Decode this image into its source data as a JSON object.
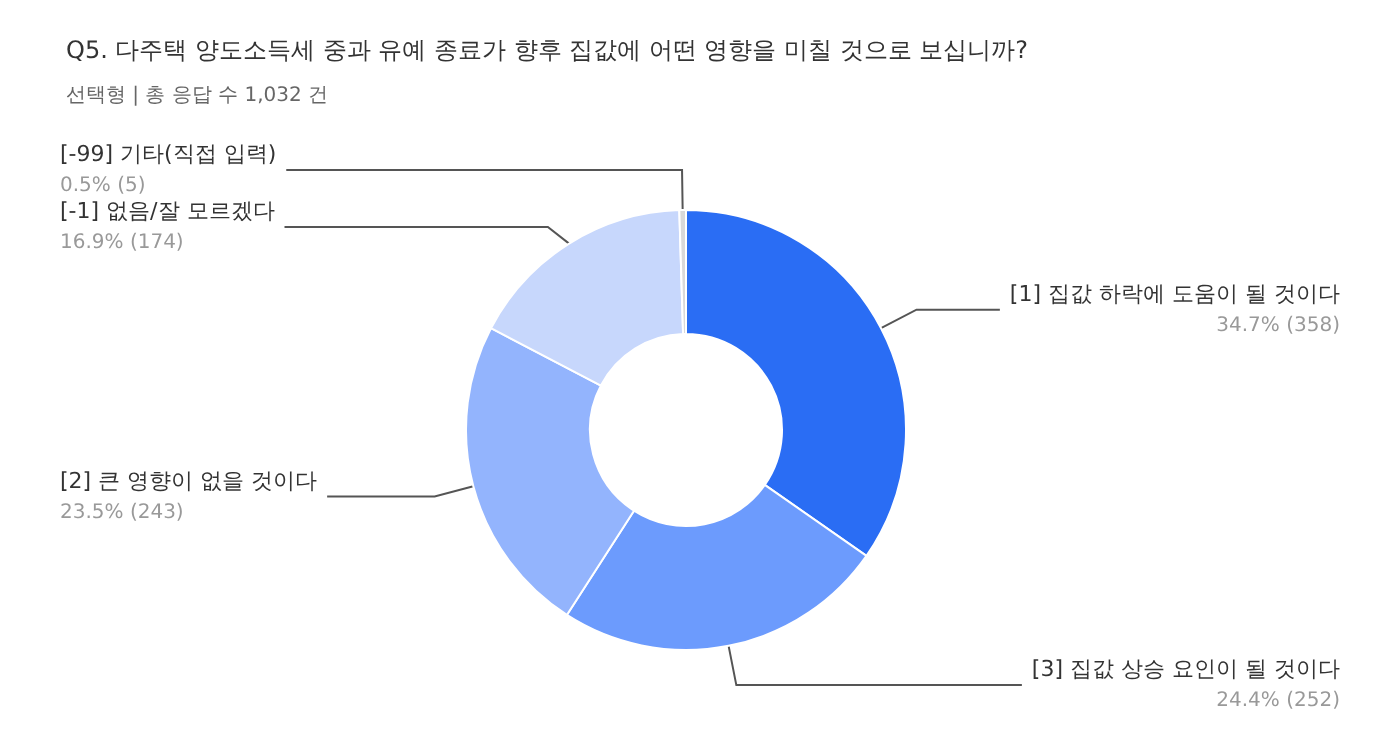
{
  "chart_data": {
    "type": "donut",
    "title": "Q5. 다주택 양도소득세 중과 유예 종료가 향후 집값에 어떤 영향을 미칠 것으로 보십니까?",
    "subtitle": "선택형 | 총 응답 수 1,032 건",
    "categories": [
      "[1] 집값 하락에 도움이 될 것이다",
      "[3] 집값 상승 요인이 될 것이다",
      "[2] 큰 영향이 없을 것이다",
      "[-1] 없음/잘 모르겠다",
      "[-99] 기타(직접 입력)"
    ],
    "values": [
      358,
      252,
      243,
      174,
      5
    ],
    "value_labels": [
      "34.7% (358)",
      "24.4% (252)",
      "23.5% (243)",
      "16.9% (174)",
      "0.5% (5)"
    ],
    "colors": [
      "#2a6df4",
      "#6c9bfd",
      "#93b4fd",
      "#c7d7fc",
      "#d9d9d9"
    ],
    "legend": false
  }
}
